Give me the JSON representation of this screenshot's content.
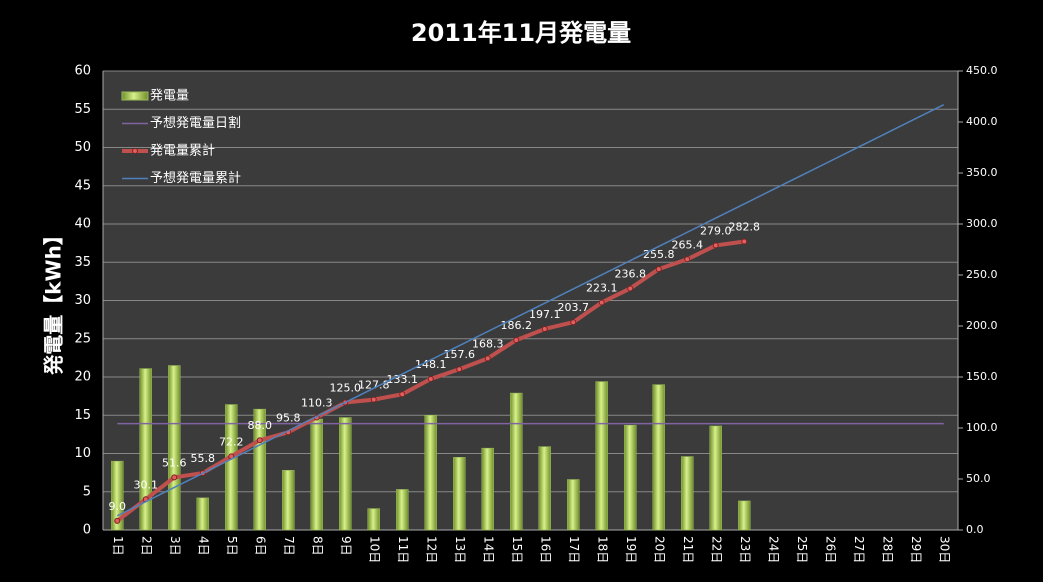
{
  "chart_data": {
    "type": "bar",
    "title": "2011年11月発電量",
    "y_label": "発電量【kWh】",
    "categories": [
      "1日",
      "2日",
      "3日",
      "4日",
      "5日",
      "6日",
      "7日",
      "8日",
      "9日",
      "10日",
      "11日",
      "12日",
      "13日",
      "14日",
      "15日",
      "16日",
      "17日",
      "18日",
      "19日",
      "20日",
      "21日",
      "22日",
      "23日",
      "24日",
      "25日",
      "26日",
      "27日",
      "28日",
      "29日",
      "30日"
    ],
    "ylim": [
      0,
      60
    ],
    "yticks": [
      0,
      5,
      10,
      15,
      20,
      25,
      30,
      35,
      40,
      45,
      50,
      55,
      60
    ],
    "y2lim": [
      0,
      450
    ],
    "y2ticks": [
      {
        "value": 0,
        "label": "0.0"
      },
      {
        "value": 50,
        "label": "50.0"
      },
      {
        "value": 100,
        "label": "100.0"
      },
      {
        "value": 150,
        "label": "150.0"
      },
      {
        "value": 200,
        "label": "200.0"
      },
      {
        "value": 250,
        "label": "250.0"
      },
      {
        "value": 300,
        "label": "300.0"
      },
      {
        "value": 350,
        "label": "350.0"
      },
      {
        "value": 400,
        "label": "400.0"
      },
      {
        "value": 450,
        "label": "450.0"
      }
    ],
    "grid": true,
    "legend": "top-left",
    "series": [
      {
        "name": "発電量",
        "type": "bar",
        "color": "#9bbb59",
        "values": [
          9.0,
          21.1,
          21.5,
          4.2,
          16.4,
          15.8,
          7.8,
          14.5,
          14.7,
          2.8,
          5.3,
          15.0,
          9.5,
          10.7,
          17.9,
          10.9,
          6.6,
          19.4,
          13.7,
          19.0,
          9.6,
          13.6,
          3.8,
          null,
          null,
          null,
          null,
          null,
          null,
          null
        ]
      },
      {
        "name": "予想発電量日割",
        "type": "line",
        "color": "#8064a2",
        "values": [
          13.9,
          13.9,
          13.9,
          13.9,
          13.9,
          13.9,
          13.9,
          13.9,
          13.9,
          13.9,
          13.9,
          13.9,
          13.9,
          13.9,
          13.9,
          13.9,
          13.9,
          13.9,
          13.9,
          13.9,
          13.9,
          13.9,
          13.9,
          13.9,
          13.9,
          13.9,
          13.9,
          13.9,
          13.9,
          13.9
        ]
      },
      {
        "name": "発電量累計",
        "type": "line",
        "axis": "y2",
        "color": "#c0504d",
        "values": [
          9.0,
          30.1,
          51.6,
          55.8,
          72.2,
          88.0,
          95.8,
          110.3,
          125.0,
          127.8,
          133.1,
          148.1,
          157.6,
          168.3,
          186.2,
          197.1,
          203.7,
          223.1,
          236.8,
          255.8,
          265.4,
          279.0,
          282.8,
          null,
          null,
          null,
          null,
          null,
          null,
          null
        ],
        "value_labels": [
          "9.0",
          "30.1",
          "51.6",
          "55.8",
          "72.2",
          "88.0",
          "95.8",
          "110.3",
          "125.0",
          "127.8",
          "133.1",
          "148.1",
          "157.6",
          "168.3",
          "186.2",
          "197.1",
          "203.7",
          "223.1",
          "236.8",
          "255.8",
          "265.4",
          "279.0",
          "282.8",
          null,
          null,
          null,
          null,
          null,
          null,
          null
        ]
      },
      {
        "name": "予想発電量累計",
        "type": "line",
        "axis": "y2",
        "color": "#4f81bd",
        "values": [
          13.9,
          27.8,
          41.7,
          55.6,
          69.5,
          83.4,
          97.3,
          111.2,
          125.1,
          139.0,
          152.9,
          166.8,
          180.7,
          194.6,
          208.5,
          222.4,
          236.3,
          250.2,
          264.1,
          278.0,
          291.9,
          305.8,
          319.7,
          333.6,
          347.5,
          361.4,
          375.3,
          389.2,
          403.1,
          417.0
        ]
      }
    ]
  }
}
